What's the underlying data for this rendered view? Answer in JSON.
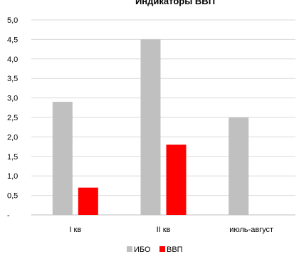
{
  "chart_data": {
    "type": "bar",
    "title": "Индикаторы ВВП",
    "categories": [
      "I кв",
      "II кв",
      "июль-август"
    ],
    "series": [
      {
        "name": "ИБО",
        "color": "#c0c0c0",
        "values": [
          2.9,
          4.5,
          2.5
        ]
      },
      {
        "name": "ВВП",
        "color": "#ff0000",
        "values": [
          0.7,
          1.8,
          null
        ]
      }
    ],
    "ylim": [
      0,
      5
    ],
    "yticks": [
      0,
      0.5,
      1,
      1.5,
      2,
      2.5,
      3,
      3.5,
      4,
      4.5,
      5
    ],
    "ytick_labels": [
      "-",
      "0,5",
      "1,0",
      "1,5",
      "2,0",
      "2,5",
      "3,0",
      "3,5",
      "4,0",
      "4,5",
      "5,0"
    ],
    "grid": true,
    "legend_position": "bottom",
    "colors": {
      "grid": "#d9d9d9",
      "axis": "#bfbfbf"
    }
  }
}
